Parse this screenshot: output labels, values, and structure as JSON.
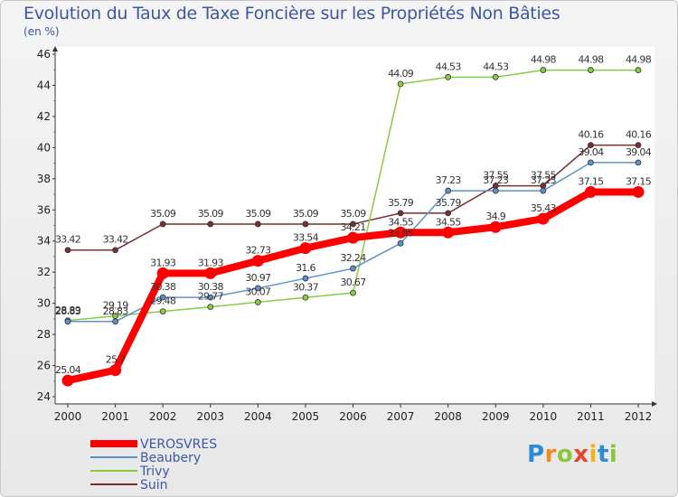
{
  "title": "Evolution du Taux de Taxe Foncière sur les Propriétés Non Bâties",
  "unit_label": "(en %)",
  "logo": {
    "letters": [
      "P",
      "r",
      "o",
      "x",
      "i",
      "t",
      "i"
    ],
    "colors": [
      "#2c8ad6",
      "#f08a1c",
      "#8cc63e",
      "#e8452c",
      "#f2b21a",
      "#2c8ad6",
      "#8cc63e"
    ]
  },
  "chart_data": {
    "type": "line",
    "title": "Evolution du Taux de Taxe Foncière sur les Propriétés Non Bâties",
    "ylabel": "(en %)",
    "x": [
      "2000",
      "2001",
      "2002",
      "2003",
      "2004",
      "2005",
      "2006",
      "2007",
      "2008",
      "2009",
      "2010",
      "2011",
      "2012"
    ],
    "ylim": [
      24,
      46
    ],
    "yticks": [
      24,
      26,
      28,
      30,
      32,
      34,
      36,
      38,
      40,
      42,
      44,
      46
    ],
    "grid": false,
    "legend": "bottom-left",
    "series": [
      {
        "name": "VEROSVRES",
        "color": "#ff0000",
        "values": [
          25.04,
          25.7,
          31.93,
          31.93,
          32.73,
          33.54,
          34.21,
          34.55,
          34.55,
          34.9,
          35.43,
          37.15,
          37.15
        ],
        "labels": [
          "25.04",
          "25.7",
          "31.93",
          "31.93",
          "32.73",
          "33.54",
          "34.21",
          "34.55",
          "34.55",
          "34.9",
          "35.43",
          "37.15",
          "37.15"
        ]
      },
      {
        "name": "Beaubery",
        "color": "#5b93c9",
        "values": [
          28.83,
          28.83,
          30.38,
          30.38,
          30.97,
          31.6,
          32.24,
          33.85,
          37.23,
          37.23,
          37.23,
          39.04,
          39.04
        ],
        "labels": [
          "28.83",
          "28.83",
          "30.38",
          "30.38",
          "30.97",
          "31.6",
          "32.24",
          "33.85",
          "37.23",
          "37.23",
          "37.23",
          "39.04",
          "39.04"
        ]
      },
      {
        "name": "Trivy",
        "color": "#88cc44",
        "values": [
          28.89,
          29.19,
          29.48,
          29.77,
          30.07,
          30.37,
          30.67,
          44.09,
          44.53,
          44.53,
          44.98,
          44.98,
          44.98
        ],
        "labels": [
          "28.89",
          "29.19",
          "29.48",
          "29.77",
          "30.07",
          "30.37",
          "30.67",
          "44.09",
          "44.53",
          "44.53",
          "44.98",
          "44.98",
          "44.98"
        ]
      },
      {
        "name": "Suin",
        "color": "#7a2f2f",
        "values": [
          33.42,
          33.42,
          35.09,
          35.09,
          35.09,
          35.09,
          35.09,
          35.79,
          35.79,
          37.55,
          37.55,
          40.16,
          40.16
        ],
        "labels": [
          "33.42",
          "33.42",
          "35.09",
          "35.09",
          "35.09",
          "35.09",
          "35.09",
          "35.79",
          "35.79",
          "37.55",
          "37.55",
          "40.16",
          "40.16"
        ]
      }
    ]
  }
}
